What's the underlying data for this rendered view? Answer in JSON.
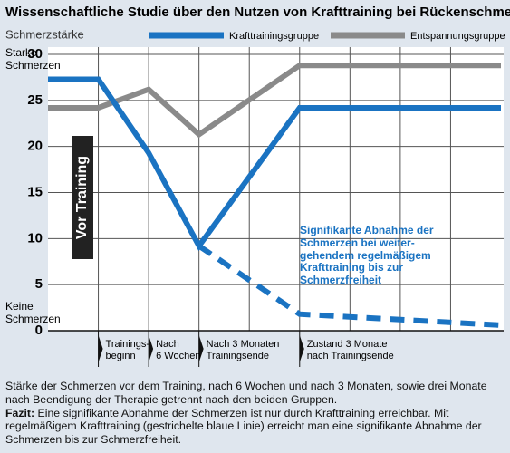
{
  "chart_data": {
    "type": "line",
    "title": "Wissenschaftliche Studie über den Nutzen von Krafttraining bei Rückenschmerzen",
    "y_label": "Schmerzstärke",
    "y_high_label": "Starke\nSchmerzen",
    "y_low_label": "Keine\nSchmerzen",
    "x": [
      0,
      1,
      2,
      3,
      5,
      9
    ],
    "series": [
      {
        "name": "Krafttrainingsgruppe",
        "color": "#1a73c2",
        "values": [
          27.3,
          27.3,
          19.3,
          9.2,
          24.2,
          24.2
        ]
      },
      {
        "name": "Entspannungsgruppe",
        "color": "#8a8a8a",
        "values": [
          24.2,
          24.2,
          26.2,
          21.3,
          28.8,
          28.8
        ]
      }
    ],
    "projection": {
      "x": [
        3,
        5,
        9
      ],
      "values": [
        9.2,
        1.8,
        0.6
      ],
      "color": "#1a73c2",
      "dashed": true
    },
    "xlim": [
      0,
      9
    ],
    "xticks": [
      {
        "value": 1,
        "label": "Trainings-\nbeginn"
      },
      {
        "value": 2,
        "label": "Nach\n6 Wochen"
      },
      {
        "value": 3,
        "label": "Nach 3 Monaten\nTrainingsende"
      },
      {
        "value": 4,
        "label": null
      },
      {
        "value": 5,
        "label": "Zustand 3 Monate\nnach Trainingsende"
      },
      {
        "value": 6,
        "label": null
      },
      {
        "value": 7,
        "label": null
      },
      {
        "value": 8,
        "label": null
      }
    ],
    "ylim": [
      0,
      30
    ],
    "yticks": [
      0,
      5,
      10,
      15,
      20,
      25,
      30
    ],
    "grid": true,
    "phase_label": "Vor Training",
    "annotation": "Signifikante Abnahme der\nSchmerzen bei weiter-\ngehendem regelmäßigem\nKrafttraining bis zur\nSchmerzfreiheit",
    "caption": "Stärke der Schmerzen vor dem Training, nach 6 Wochen und nach 3 Monaten, sowie drei Monate nach Beendigung der Therapie getrennt nach den beiden Gruppen.",
    "conclusion": {
      "label": "Fazit:",
      "text": "Eine signifikante Abnahme der Schmerzen ist nur durch Krafttraining erreichbar. Mit regelmäßigem Krafttraining (gestrichelte blaue Linie) erreicht man eine signifikante Abnahme der Schmerzen bis zur Schmerzfreiheit."
    }
  }
}
